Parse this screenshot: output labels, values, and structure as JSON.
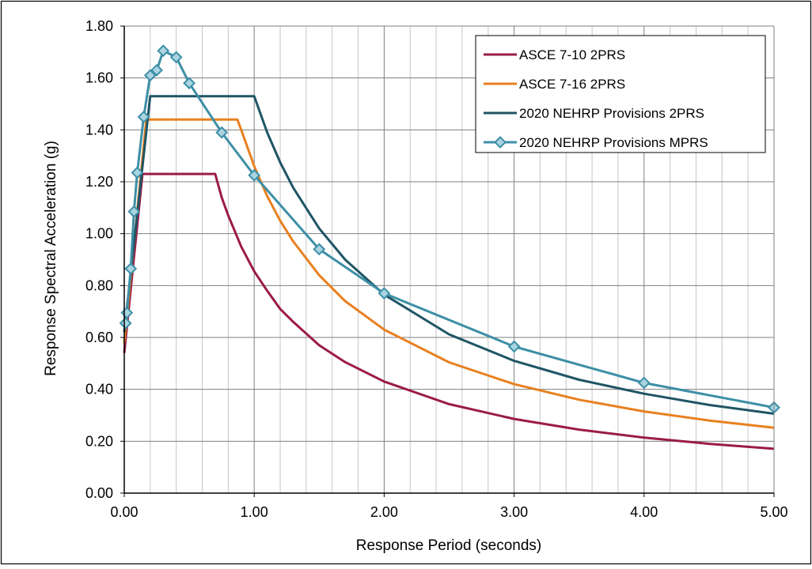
{
  "chart_data": {
    "type": "line",
    "title": "",
    "xlabel": "Response Period (seconds)",
    "ylabel": "Response Spectral Acceleration (g)",
    "xlim": [
      0,
      5
    ],
    "ylim": [
      0,
      1.8
    ],
    "x_ticks": [
      "0.00",
      "1.00",
      "2.00",
      "3.00",
      "4.00",
      "5.00"
    ],
    "y_ticks": [
      "0.00",
      "0.20",
      "0.40",
      "0.60",
      "0.80",
      "1.00",
      "1.20",
      "1.40",
      "1.60",
      "1.80"
    ],
    "grid": true,
    "legend_position": "top-right",
    "series": [
      {
        "name": "ASCE 7-10 2PRS",
        "color": "#9b1b48",
        "marker": "none",
        "x": [
          0,
          0.14,
          0.2,
          0.3,
          0.4,
          0.5,
          0.6,
          0.7,
          0.75,
          0.8,
          0.9,
          1.0,
          1.1,
          1.2,
          1.3,
          1.5,
          1.7,
          2.0,
          2.5,
          3.0,
          3.5,
          4.0,
          4.5,
          5.0
        ],
        "y": [
          0.54,
          1.23,
          1.23,
          1.23,
          1.23,
          1.23,
          1.23,
          1.23,
          1.14,
          1.07,
          0.95,
          0.855,
          0.78,
          0.71,
          0.66,
          0.57,
          0.505,
          0.43,
          0.343,
          0.286,
          0.245,
          0.214,
          0.19,
          0.171
        ]
      },
      {
        "name": "ASCE 7-16 2PRS",
        "color": "#e8801f",
        "marker": "none",
        "x": [
          0,
          0.17,
          0.3,
          0.5,
          0.7,
          0.87,
          0.9,
          1.0,
          1.1,
          1.2,
          1.3,
          1.5,
          1.7,
          2.0,
          2.5,
          3.0,
          3.5,
          4.0,
          4.5,
          5.0
        ],
        "y": [
          0.58,
          1.44,
          1.44,
          1.44,
          1.44,
          1.44,
          1.4,
          1.26,
          1.145,
          1.05,
          0.97,
          0.84,
          0.74,
          0.63,
          0.504,
          0.42,
          0.36,
          0.315,
          0.28,
          0.252
        ]
      },
      {
        "name": "2020 NEHRP Provisions 2PRS",
        "color": "#1f5566",
        "marker": "none",
        "x": [
          0,
          0.2,
          0.4,
          0.6,
          0.8,
          1.0,
          1.1,
          1.2,
          1.3,
          1.5,
          1.7,
          2.0,
          2.5,
          3.0,
          3.5,
          4.0,
          4.5,
          5.0
        ],
        "y": [
          0.62,
          1.53,
          1.53,
          1.53,
          1.53,
          1.53,
          1.39,
          1.275,
          1.177,
          1.02,
          0.9,
          0.765,
          0.612,
          0.51,
          0.437,
          0.383,
          0.34,
          0.306
        ]
      },
      {
        "name": "2020 NEHRP Provisions MPRS",
        "color": "#3d8fa6",
        "marker": "diamond",
        "x": [
          0.01,
          0.02,
          0.05,
          0.075,
          0.1,
          0.15,
          0.2,
          0.25,
          0.3,
          0.4,
          0.5,
          0.75,
          1.0,
          1.5,
          2.0,
          3.0,
          4.0,
          5.0
        ],
        "y": [
          0.655,
          0.695,
          0.865,
          1.085,
          1.235,
          1.45,
          1.61,
          1.63,
          1.705,
          1.68,
          1.58,
          1.39,
          1.225,
          0.94,
          0.77,
          0.565,
          0.425,
          0.33
        ]
      }
    ]
  }
}
